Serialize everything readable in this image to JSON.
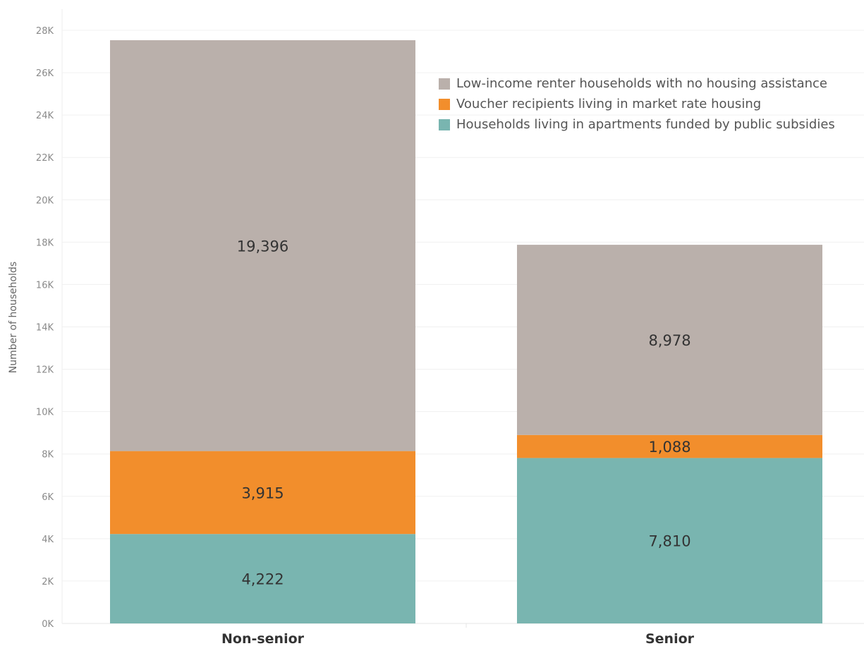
{
  "chart_data": {
    "type": "bar",
    "stacked": true,
    "categories": [
      "Non-senior",
      "Senior"
    ],
    "series": [
      {
        "name": "Households living in apartments funded by public subsidies",
        "color": "#79b5b0",
        "values": [
          4222,
          7810
        ],
        "labels": [
          "4,222",
          "7,810"
        ]
      },
      {
        "name": "Voucher recipients living in market rate housing",
        "color": "#f28e2c",
        "values": [
          3915,
          1088
        ],
        "labels": [
          "3,915",
          "1,088"
        ]
      },
      {
        "name": "Low-income renter households with no housing assistance",
        "color": "#bab0ab",
        "values": [
          19396,
          8978
        ],
        "labels": [
          "19,396",
          "8,978"
        ]
      }
    ],
    "ylabel": "Number of households",
    "ylim": [
      0,
      28000
    ],
    "yticks": [
      {
        "value": 0,
        "label": "0K"
      },
      {
        "value": 2000,
        "label": "2K"
      },
      {
        "value": 4000,
        "label": "4K"
      },
      {
        "value": 6000,
        "label": "6K"
      },
      {
        "value": 8000,
        "label": "8K"
      },
      {
        "value": 10000,
        "label": "10K"
      },
      {
        "value": 12000,
        "label": "12K"
      },
      {
        "value": 14000,
        "label": "14K"
      },
      {
        "value": 16000,
        "label": "16K"
      },
      {
        "value": 18000,
        "label": "18K"
      },
      {
        "value": 20000,
        "label": "20K"
      },
      {
        "value": 22000,
        "label": "22K"
      },
      {
        "value": 24000,
        "label": "24K"
      },
      {
        "value": 26000,
        "label": "26K"
      },
      {
        "value": 28000,
        "label": "28K"
      }
    ],
    "grid": true,
    "legend": {
      "position": "top-right",
      "order": [
        "Low-income renter households with no housing assistance",
        "Voucher recipients living in market rate housing",
        "Households living in apartments funded by public subsidies"
      ]
    }
  }
}
